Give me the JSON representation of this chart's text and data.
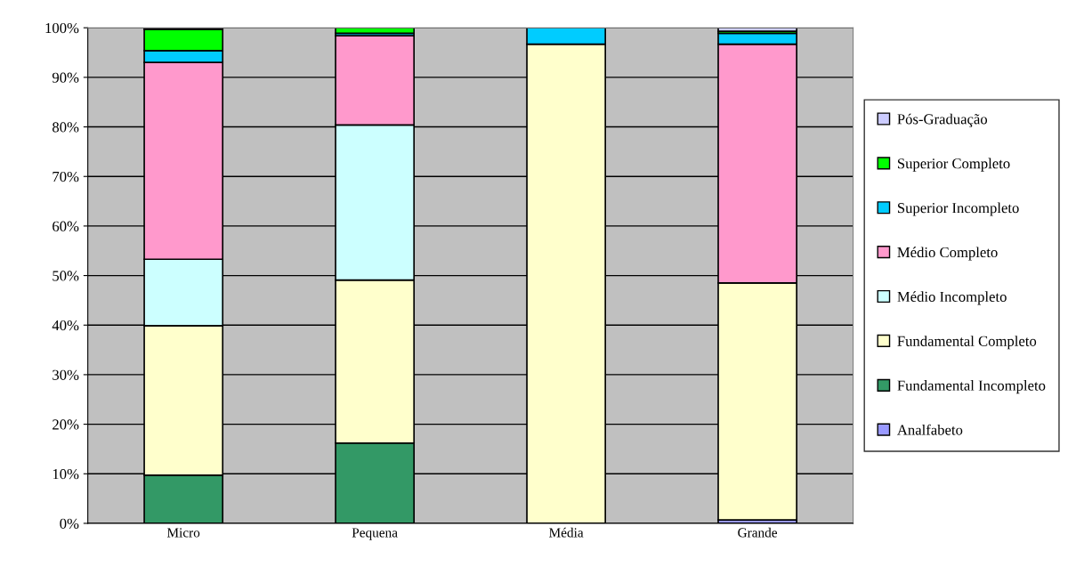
{
  "chart_data": {
    "type": "bar",
    "stacked": true,
    "categories": [
      "Micro",
      "Pequena",
      "Média",
      "Grande"
    ],
    "series": [
      {
        "name": "Analfabeto",
        "color": "#9999ff",
        "values": [
          null,
          null,
          null,
          0.7
        ]
      },
      {
        "name": "Fundamental Incompleto",
        "color": "#339966",
        "values": [
          9.7,
          16.2,
          null,
          null
        ]
      },
      {
        "name": "Fundamental Completo",
        "color": "#ffffcc",
        "values": [
          30.2,
          32.9,
          96.7,
          47.8
        ]
      },
      {
        "name": "Médio Incompleto",
        "color": "#ccffff",
        "values": [
          13.4,
          31.3,
          null,
          null
        ]
      },
      {
        "name": "Médio Completo",
        "color": "#ff99cc",
        "values": [
          39.7,
          18.0,
          null,
          48.2
        ]
      },
      {
        "name": "Superior Incompleto",
        "color": "#00ccff",
        "values": [
          2.4,
          0.5,
          3.3,
          2.2
        ]
      },
      {
        "name": "Superior Completo",
        "color": "#00ff00",
        "values": [
          4.3,
          1.1,
          null,
          0.4
        ]
      },
      {
        "name": "Pós-Graduação",
        "color": "#ccccff",
        "values": [
          0.3,
          null,
          null,
          0.7
        ]
      }
    ],
    "ylim": [
      0,
      100
    ],
    "yticks": [
      {
        "value": 0,
        "label": "0%"
      },
      {
        "value": 10,
        "label": "10%"
      },
      {
        "value": 20,
        "label": "20%"
      },
      {
        "value": 30,
        "label": "30%"
      },
      {
        "value": 40,
        "label": "40%"
      },
      {
        "value": 50,
        "label": "50%"
      },
      {
        "value": 60,
        "label": "60%"
      },
      {
        "value": 70,
        "label": "70%"
      },
      {
        "value": 80,
        "label": "80%"
      },
      {
        "value": 90,
        "label": "90%"
      },
      {
        "value": 100,
        "label": "100%"
      }
    ],
    "grid": "y",
    "legend": "right"
  }
}
